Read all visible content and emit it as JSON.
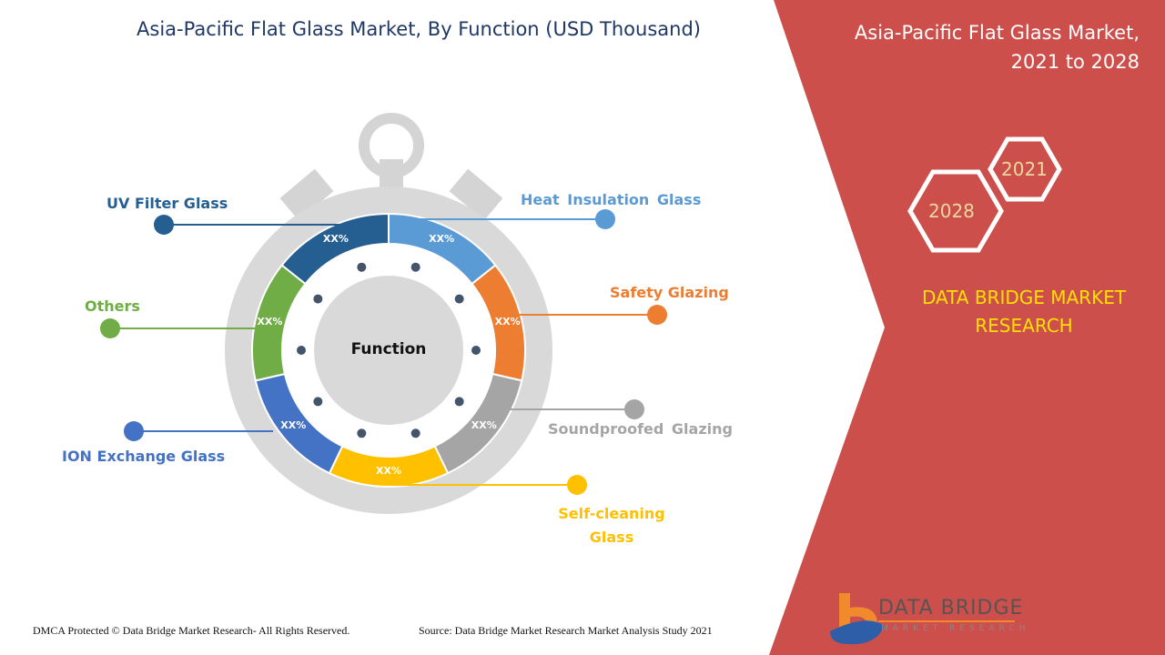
{
  "title": "Asia-Pacific Flat Glass Market, By Function (USD Thousand)",
  "side_title": [
    "Asia-Pacific Flat Glass Market,",
    "2021 to 2028"
  ],
  "years": {
    "start": "2021",
    "end": "2028"
  },
  "brand": [
    "DATA BRIDGE MARKET",
    "RESEARCH"
  ],
  "center_label": "Function",
  "segments": [
    {
      "name": "Heat Insulation Glass",
      "value_label": "XX%",
      "color": "#5b9bd5"
    },
    {
      "name": "Safety Glazing",
      "value_label": "XX%",
      "color": "#ed7d31"
    },
    {
      "name": "Soundproofed Glazing",
      "value_label": "XX%",
      "color": "#a5a5a5"
    },
    {
      "name": "Self-cleaning Glass",
      "value_label": "XX%",
      "color": "#ffc000"
    },
    {
      "name": "ION Exchange Glass",
      "value_label": "XX%",
      "color": "#4472c4"
    },
    {
      "name": "Others",
      "value_label": "XX%",
      "color": "#70ad47"
    },
    {
      "name": "UV Filter Glass",
      "value_label": "XX%",
      "color": "#255e91"
    }
  ],
  "self_cleaning_lines": [
    "Self-cleaning",
    "Glass"
  ],
  "footer": {
    "copyright": "DMCA Protected © Data Bridge Market Research- All Rights Reserved.",
    "source": "Source: Data Bridge Market Research Market Analysis Study 2021"
  },
  "logo": {
    "name": "DATA BRIDGE",
    "sub": "MARKET RESEARCH"
  },
  "colors": {
    "panel": "#cd4f4b",
    "brand_text": "#ffe000",
    "title": "#1f3864"
  }
}
